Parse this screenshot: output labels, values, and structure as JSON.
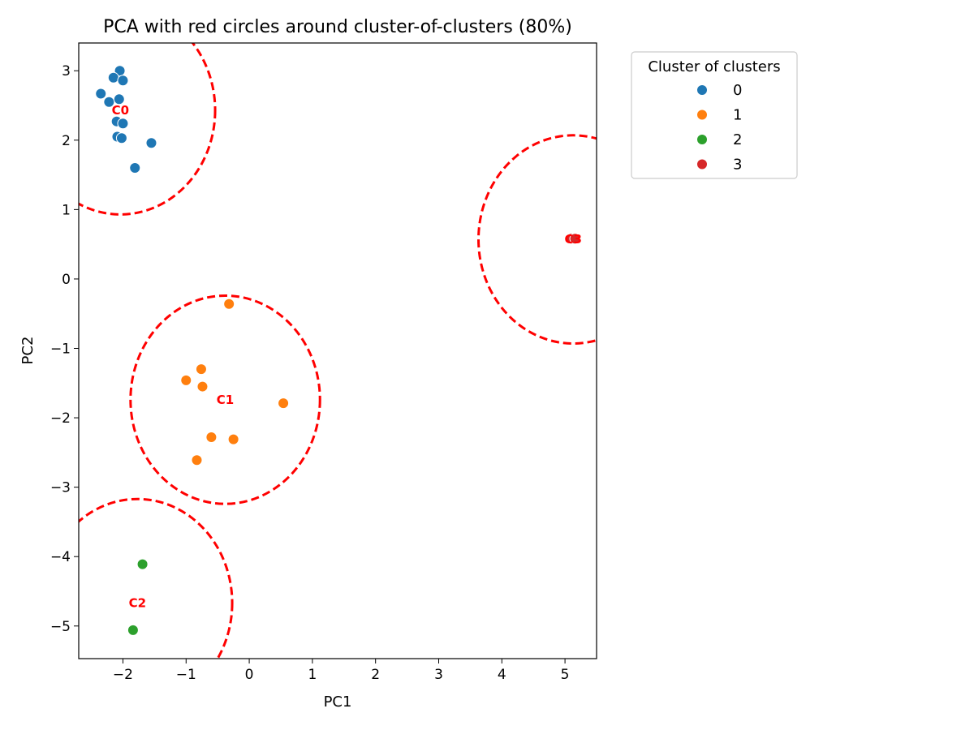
{
  "chart_data": {
    "type": "scatter",
    "title": "PCA with red circles around cluster-of-clusters (80%)",
    "xlabel": "PC1",
    "ylabel": "PC2",
    "xlim": [
      -2.7,
      5.5
    ],
    "ylim": [
      -5.47,
      3.4
    ],
    "xticks": [
      -2,
      -1,
      0,
      1,
      2,
      3,
      4,
      5
    ],
    "yticks": [
      -5,
      -4,
      -3,
      -2,
      -1,
      0,
      1,
      2,
      3
    ],
    "grid": false,
    "legend": {
      "title": "Cluster of clusters",
      "placement": "outside-upper-right",
      "entries": [
        "0",
        "1",
        "2",
        "3"
      ]
    },
    "series": [
      {
        "name": "0",
        "color": "#1f77b4",
        "points": [
          [
            -2.05,
            3.0
          ],
          [
            -2.15,
            2.9
          ],
          [
            -2.0,
            2.86
          ],
          [
            -2.35,
            2.67
          ],
          [
            -2.22,
            2.55
          ],
          [
            -2.06,
            2.59
          ],
          [
            -2.1,
            2.27
          ],
          [
            -2.0,
            2.24
          ],
          [
            -2.09,
            2.05
          ],
          [
            -2.02,
            2.03
          ],
          [
            -1.55,
            1.96
          ],
          [
            -1.81,
            1.6
          ]
        ]
      },
      {
        "name": "1",
        "color": "#ff7f0e",
        "points": [
          [
            -0.32,
            -0.36
          ],
          [
            -1.0,
            -1.46
          ],
          [
            -0.76,
            -1.3
          ],
          [
            -0.74,
            -1.55
          ],
          [
            0.54,
            -1.79
          ],
          [
            -0.6,
            -2.28
          ],
          [
            -0.25,
            -2.31
          ],
          [
            -0.83,
            -2.61
          ]
        ]
      },
      {
        "name": "2",
        "color": "#2ca02c",
        "points": [
          [
            -1.69,
            -4.11
          ],
          [
            -1.84,
            -5.06
          ]
        ]
      },
      {
        "name": "3",
        "color": "#d62728",
        "points": [
          [
            5.1,
            0.58
          ],
          [
            5.16,
            0.58
          ]
        ]
      }
    ],
    "circles": [
      {
        "label": "C0",
        "cx": -2.04,
        "cy": 2.43,
        "rx": 1.5,
        "ry": 1.5
      },
      {
        "label": "C1",
        "cx": -0.38,
        "cy": -1.74,
        "rx": 1.5,
        "ry": 1.5
      },
      {
        "label": "C2",
        "cx": -1.77,
        "cy": -4.67,
        "rx": 1.5,
        "ry": 1.5
      },
      {
        "label": "C3",
        "cx": 5.13,
        "cy": 0.57,
        "rx": 1.5,
        "ry": 1.5
      }
    ]
  }
}
